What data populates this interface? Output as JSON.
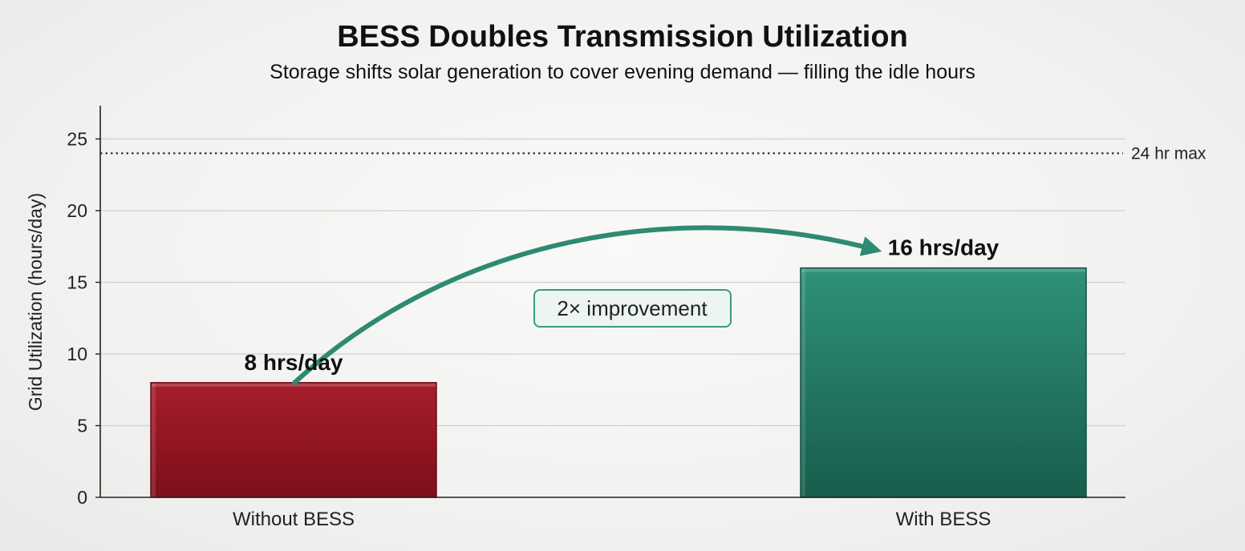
{
  "chart_data": {
    "type": "bar",
    "title": "BESS Doubles Transmission Utilization",
    "subtitle": "Storage shifts solar generation to cover evening demand — filling the idle hours",
    "ylabel": "Grid Utilization (hours/day)",
    "xlabel": "",
    "categories": [
      "Without BESS",
      "With BESS"
    ],
    "values": [
      8,
      16
    ],
    "data_labels": [
      "8 hrs/day",
      "16 hrs/day"
    ],
    "colors": [
      "#9b1826",
      "#2a8a73"
    ],
    "ylim": [
      0,
      27
    ],
    "yticks": [
      0,
      5,
      10,
      15,
      20,
      25
    ],
    "grid": true,
    "reference_line": {
      "value": 24,
      "label": "24 hr max",
      "style": "dotted"
    },
    "annotation": {
      "text": "2× improvement",
      "from": "Without BESS",
      "to": "With BESS",
      "arrow_color": "#2e8a72"
    }
  }
}
